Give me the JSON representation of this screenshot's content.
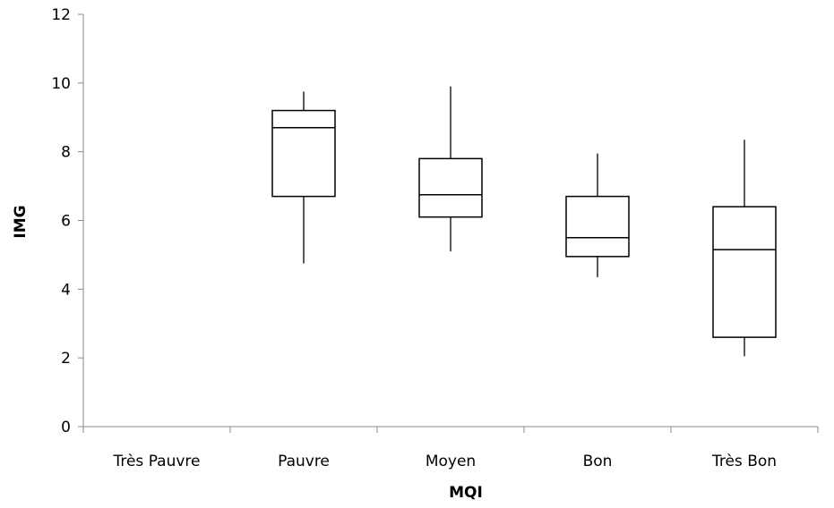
{
  "chart_data": {
    "type": "box",
    "xlabel": "MQI",
    "ylabel": "IMG",
    "ylim": [
      0,
      12
    ],
    "y_ticks": [
      "0",
      "2",
      "4",
      "6",
      "8",
      "10",
      "12"
    ],
    "categories": [
      "Très Pauvre",
      "Pauvre",
      "Moyen",
      "Bon",
      "Très Bon"
    ],
    "boxes": [
      null,
      {
        "min": 4.75,
        "q1": 6.7,
        "median": 8.7,
        "q3": 9.2,
        "max": 9.75
      },
      {
        "min": 5.1,
        "q1": 6.1,
        "median": 6.75,
        "q3": 7.8,
        "max": 9.9
      },
      {
        "min": 4.35,
        "q1": 4.95,
        "median": 5.5,
        "q3": 6.7,
        "max": 7.95
      },
      {
        "min": 2.05,
        "q1": 2.6,
        "median": 5.15,
        "q3": 6.4,
        "max": 8.35
      }
    ],
    "grid": false,
    "legend": false,
    "colors": {
      "stroke": "#000000",
      "box_fill": "#ffffff",
      "axis": "#888888"
    }
  }
}
